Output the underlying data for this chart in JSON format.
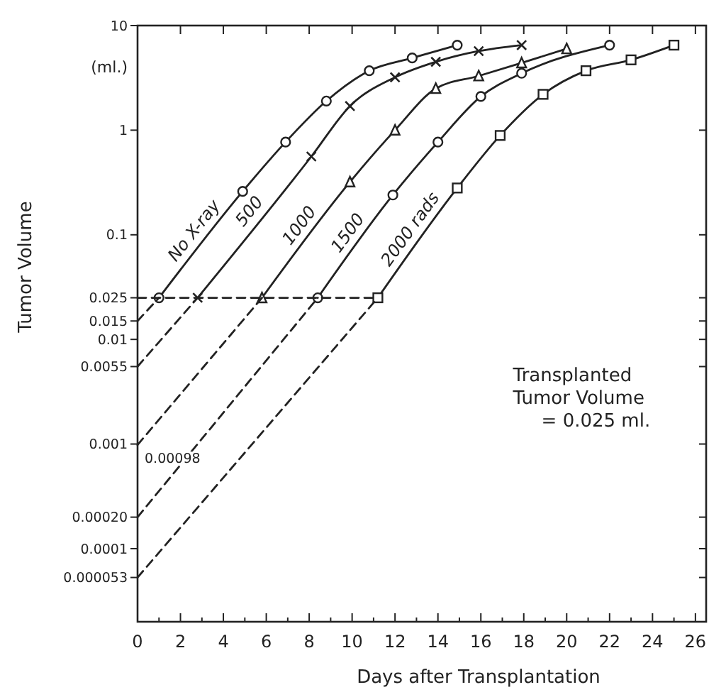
{
  "chart_data": {
    "type": "line",
    "xlabel": "Days after Transplantation",
    "ylabel": "Tumor Volume",
    "log": "y",
    "grid": false,
    "xlim": [
      0,
      26.5
    ],
    "xticks": [
      0,
      2,
      4,
      6,
      8,
      10,
      12,
      14,
      16,
      18,
      20,
      22,
      24,
      26
    ],
    "ylim": [
      2e-05,
      10
    ],
    "yticks": [
      10,
      1,
      {
        "value": 0.1,
        "label": "0.1"
      },
      0.025,
      0.015,
      0.01,
      0.0055,
      0.001,
      {
        "value": 0.0002,
        "label": "0.00020"
      },
      0.0001,
      {
        "value": 5.3e-05,
        "label": "0.000053"
      }
    ],
    "annotations": [
      "(ml.)",
      "Transplanted\nTumor Volume\n= 0.025 ml.",
      {
        "text": "0.00098",
        "x": 0,
        "y": 0.00098
      }
    ],
    "series": [
      {
        "name": "No X-ray",
        "color": "#222222",
        "marker": "circle",
        "x": [
          1.0,
          4.9,
          6.9,
          8.8,
          10.8,
          12.8,
          14.9
        ],
        "values": [
          0.025,
          0.26,
          0.77,
          1.9,
          3.7,
          4.9,
          6.5
        ]
      },
      {
        "name": "500",
        "color": "#222222",
        "marker": "cross",
        "x": [
          2.8,
          8.1,
          9.9,
          12.0,
          13.9,
          15.9,
          17.9
        ],
        "values": [
          0.025,
          0.56,
          1.7,
          3.2,
          4.5,
          5.7,
          6.5
        ]
      },
      {
        "name": "1000",
        "color": "#222222",
        "marker": "triangle",
        "x": [
          5.8,
          9.9,
          12.0,
          13.9,
          15.9,
          17.9,
          20.0
        ],
        "values": [
          0.025,
          0.32,
          1.0,
          2.5,
          3.3,
          4.4,
          6.0
        ]
      },
      {
        "name": "1500",
        "color": "#222222",
        "marker": "circle",
        "x": [
          8.4,
          11.9,
          14.0,
          16.0,
          17.9,
          22.0
        ],
        "values": [
          0.025,
          0.24,
          0.77,
          2.1,
          3.5,
          6.5
        ]
      },
      {
        "name": "2000 rads",
        "color": "#222222",
        "marker": "square",
        "x": [
          11.2,
          14.9,
          16.9,
          18.9,
          20.9,
          23.0,
          25.0
        ],
        "values": [
          0.025,
          0.28,
          0.89,
          2.2,
          3.7,
          4.7,
          6.5
        ]
      },
      {
        "color": "#222222",
        "marker": "none",
        "line_style": "dashed",
        "x": [
          0,
          1.0
        ],
        "values": [
          0.015,
          0.025
        ]
      },
      {
        "color": "#222222",
        "marker": "none",
        "line_style": "dashed",
        "x": [
          0,
          2.8
        ],
        "values": [
          0.0055,
          0.025
        ]
      },
      {
        "color": "#222222",
        "marker": "none",
        "line_style": "dashed",
        "x": [
          0,
          5.8
        ],
        "values": [
          0.00098,
          0.025
        ]
      },
      {
        "color": "#222222",
        "marker": "none",
        "line_style": "dashed",
        "x": [
          0,
          8.4
        ],
        "values": [
          0.0002,
          0.025
        ]
      },
      {
        "color": "#222222",
        "marker": "none",
        "line_style": "dashed",
        "x": [
          0,
          11.2
        ],
        "values": [
          5.3e-05,
          0.025
        ]
      },
      {
        "color": "#222222",
        "marker": "none",
        "line_style": "dashed",
        "x": [
          0,
          11.2
        ],
        "values": [
          0.025,
          0.025
        ]
      }
    ]
  }
}
